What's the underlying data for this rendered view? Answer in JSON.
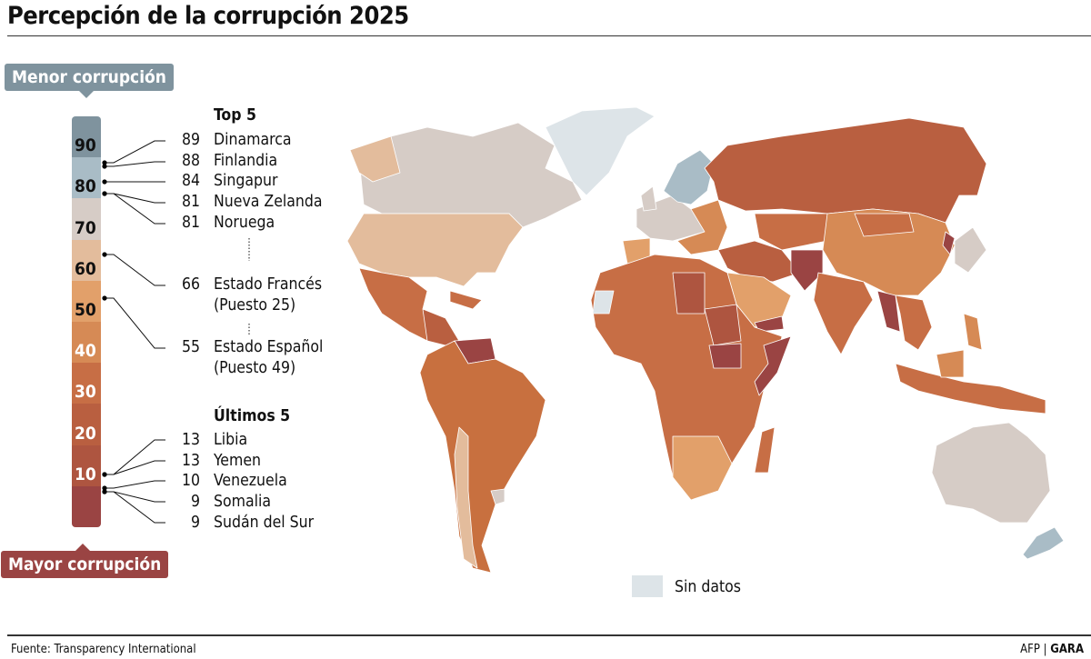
{
  "title": "Percepción de la corrupción 2025",
  "legend": {
    "top_label": "Menor corrupción",
    "bottom_label": "Mayor corrupción",
    "ticks": [
      "90",
      "80",
      "70",
      "60",
      "50",
      "40",
      "30",
      "20",
      "10"
    ],
    "bands": [
      {
        "range": "90-100",
        "color": "#7f939e"
      },
      {
        "range": "80-90",
        "color": "#a9bcc6"
      },
      {
        "range": "70-80",
        "color": "#d6ccc6"
      },
      {
        "range": "60-70",
        "color": "#e3bc9c"
      },
      {
        "range": "50-60",
        "color": "#e2a06a"
      },
      {
        "range": "40-50",
        "color": "#d68a55"
      },
      {
        "range": "30-40",
        "color": "#c76e45"
      },
      {
        "range": "20-30",
        "color": "#b95f40"
      },
      {
        "range": "10-20",
        "color": "#ae5540"
      },
      {
        "range": "0-10",
        "color": "#9a4443"
      }
    ],
    "no_data_label": "Sin datos",
    "no_data_color": "#dde4e8"
  },
  "top5": {
    "heading": "Top 5",
    "items": [
      {
        "score": "89",
        "country": "Dinamarca"
      },
      {
        "score": "88",
        "country": "Finlandia"
      },
      {
        "score": "84",
        "country": "Singapur"
      },
      {
        "score": "81",
        "country": "Nueva Zelanda"
      },
      {
        "score": "81",
        "country": "Noruega"
      }
    ]
  },
  "highlights": [
    {
      "score": "66",
      "country": "Estado Francés",
      "rank": "(Puesto 25)"
    },
    {
      "score": "55",
      "country": "Estado Español",
      "rank": "(Puesto 49)"
    }
  ],
  "bottom5": {
    "heading": "Últimos 5",
    "items": [
      {
        "score": "13",
        "country": "Libia"
      },
      {
        "score": "13",
        "country": "Yemen"
      },
      {
        "score": "10",
        "country": "Venezuela"
      },
      {
        "score": "9",
        "country": "Somalia"
      },
      {
        "score": "9",
        "country": "Sudán del Sur"
      }
    ]
  },
  "footer": {
    "source": "Fuente: Transparency International",
    "credit_agency": "AFP",
    "credit_sep": "|",
    "credit_paper": "GARA"
  }
}
